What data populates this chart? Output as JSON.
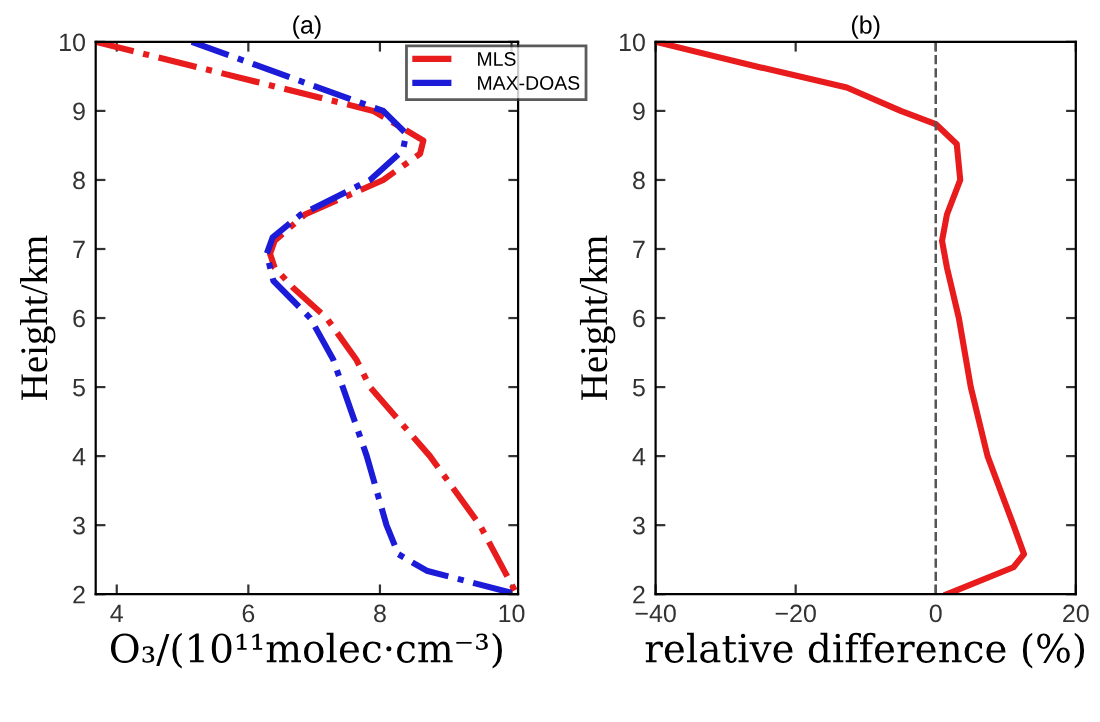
{
  "chart_data": [
    {
      "type": "line",
      "title": "(a)",
      "xlabel": "O₃/(10¹¹molec·cm⁻³)",
      "ylabel": "Height/km",
      "xlim": [
        3.68,
        10.1
      ],
      "ylim": [
        2,
        10
      ],
      "xticks": [
        4,
        6,
        8,
        10
      ],
      "yticks": [
        2,
        3,
        4,
        5,
        6,
        7,
        8,
        9,
        10
      ],
      "grid": false,
      "legend": "top right",
      "line_style": "dashdot",
      "marker": "none",
      "series": [
        {
          "name": "MLS",
          "color": "#e81c1c",
          "x": [
            3.68,
            7.9,
            8.61,
            8.66,
            8.61,
            8.05,
            6.86,
            6.4,
            6.33,
            6.4,
            6.68,
            7.19,
            7.64,
            7.85,
            8.76,
            9.52,
            10.08
          ],
          "values": [
            10,
            9,
            8.6,
            8.57,
            8.38,
            8,
            7.5,
            7.12,
            6.93,
            6.73,
            6.44,
            6,
            5.4,
            5,
            4,
            3,
            2
          ]
        },
        {
          "name": "MAX-DOAS",
          "color": "#1c1cd8",
          "x": [
            5.14,
            8.05,
            8.4,
            8.35,
            7.85,
            6.8,
            6.37,
            6.28,
            6.38,
            6.94,
            7.29,
            7.8,
            8.1,
            8.28,
            8.71,
            10.08
          ],
          "values": [
            10,
            9,
            8.67,
            8.43,
            8,
            7.5,
            7.17,
            6.93,
            6.54,
            6,
            5.4,
            4,
            3,
            2.58,
            2.34,
            2
          ]
        }
      ]
    },
    {
      "type": "line",
      "title": "(b)",
      "xlabel": "relative difference (%)",
      "ylabel": "Height/km",
      "xlim": [
        -40,
        20
      ],
      "ylim": [
        2,
        10
      ],
      "xticks": [
        -40,
        -20,
        0,
        20
      ],
      "yticks": [
        2,
        3,
        4,
        5,
        6,
        7,
        8,
        9,
        10
      ],
      "grid": false,
      "line_style": "solid",
      "marker": "none",
      "ref_lines": [
        {
          "axis": "x",
          "value": 0,
          "color": "#555555",
          "line_style": "dashed"
        }
      ],
      "series": [
        {
          "color": "#e81c1c",
          "x": [
            -40,
            -25.0,
            -12.7,
            -5.0,
            0,
            3.0,
            3.5,
            1.6,
            0.9,
            1.6,
            3.3,
            5.0,
            7.4,
            11.1,
            12.6,
            11.1,
            1.6
          ],
          "values": [
            10,
            9.63,
            9.34,
            9,
            8.81,
            8.52,
            8,
            7.5,
            7.12,
            6.73,
            6,
            5,
            4,
            3,
            2.58,
            2.39,
            2
          ]
        }
      ]
    }
  ]
}
